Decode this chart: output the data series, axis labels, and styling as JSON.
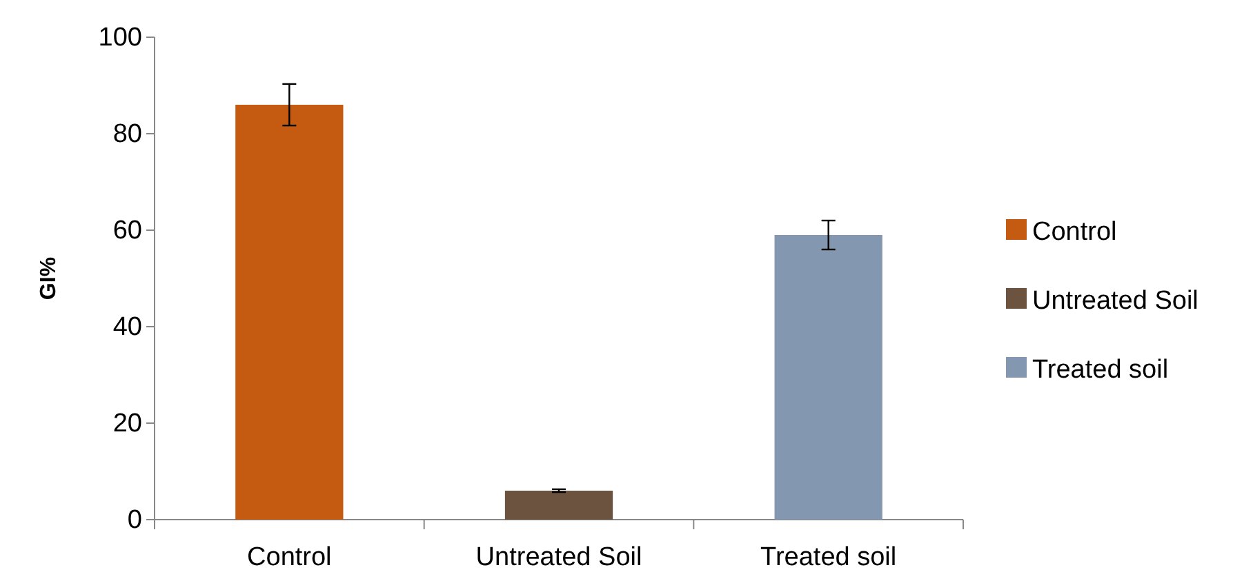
{
  "chart_data": {
    "type": "bar",
    "ylabel": "GI%",
    "categories": [
      "Control",
      "Untreated Soil",
      "Treated soil"
    ],
    "series": [
      {
        "name": "Control",
        "color": "#c55a11",
        "values": [
          86,
          null,
          null
        ],
        "errors": [
          4.3,
          null,
          null
        ]
      },
      {
        "name": "Untreated Soil",
        "color": "#6b5340",
        "values": [
          null,
          6,
          null
        ],
        "errors": [
          null,
          0.3,
          null
        ]
      },
      {
        "name": "Treated soil",
        "color": "#8497b0",
        "values": [
          null,
          null,
          59
        ],
        "errors": [
          null,
          null,
          3
        ]
      }
    ],
    "ylim": [
      0,
      100
    ],
    "yticks": [
      0,
      20,
      40,
      60,
      80,
      100
    ],
    "legend": "right"
  }
}
